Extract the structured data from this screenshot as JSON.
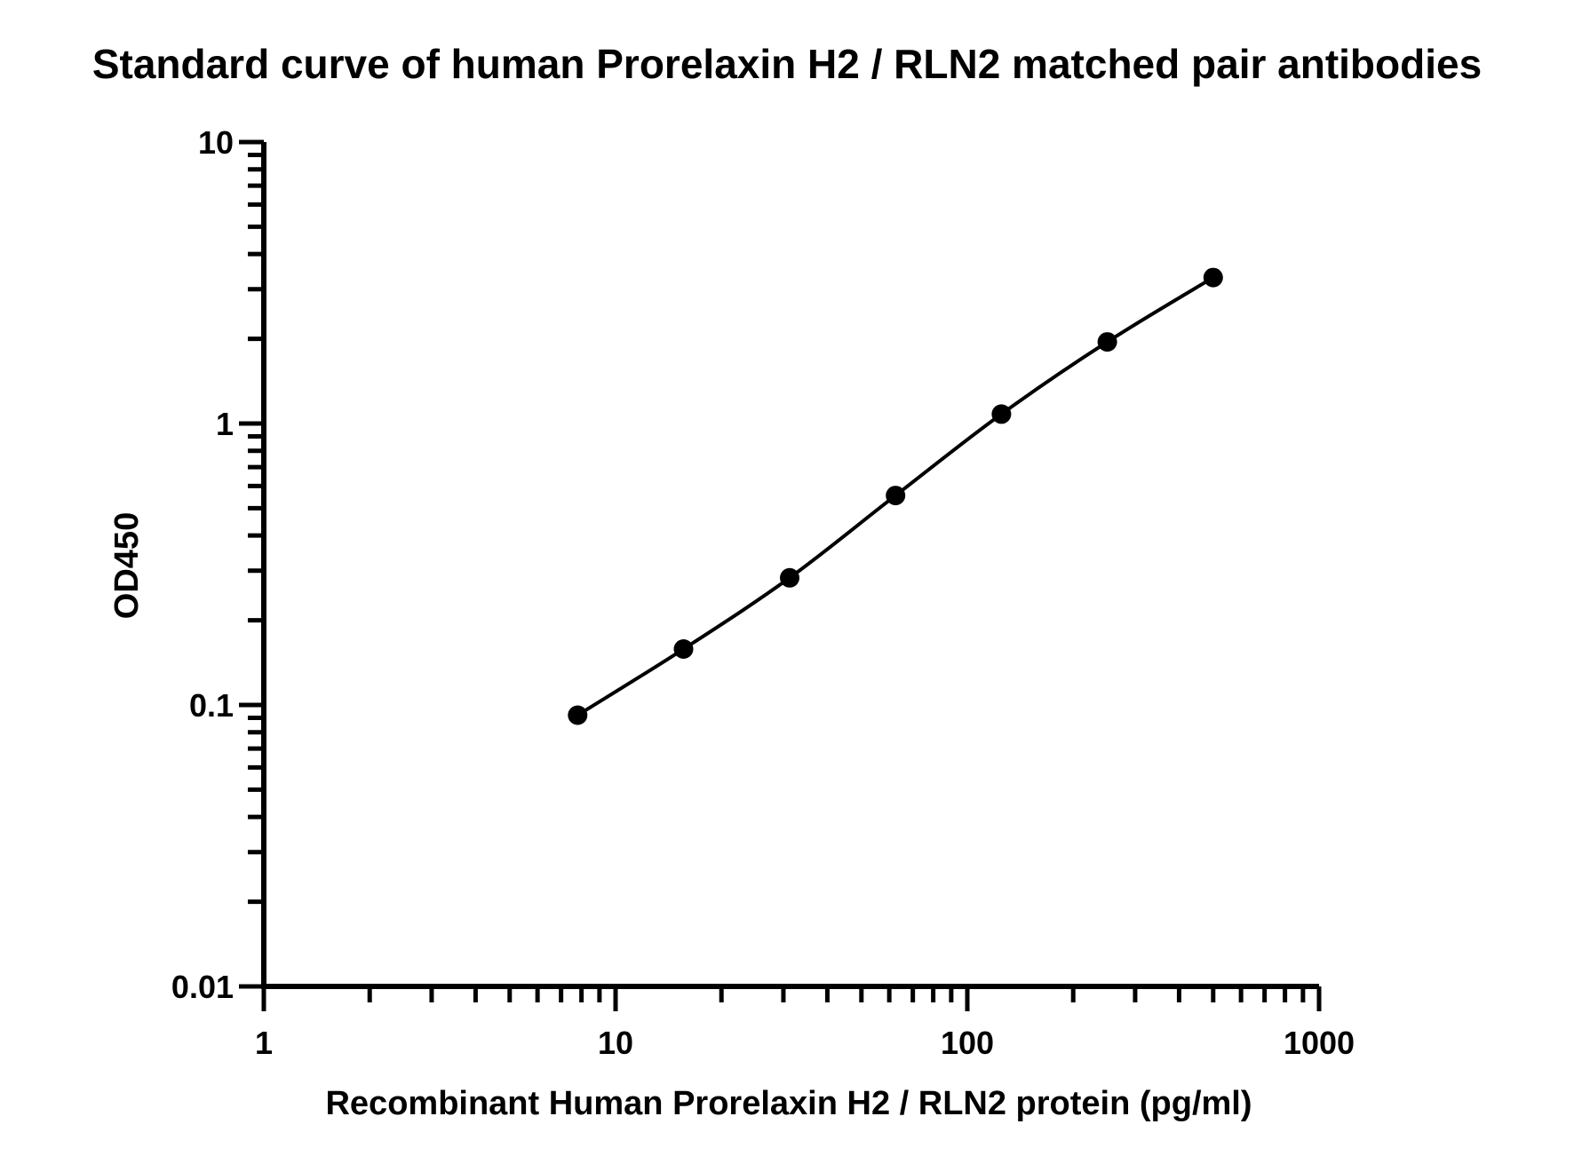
{
  "chart_data": {
    "type": "scatter",
    "title": "Standard curve of human Prorelaxin H2 / RLN2 matched pair antibodies",
    "xlabel": "Recombinant Human Prorelaxin H2 / RLN2 protein (pg/ml)",
    "ylabel": "OD450",
    "xscale": "log",
    "yscale": "log",
    "xlim": [
      1,
      1000
    ],
    "ylim": [
      0.01,
      10
    ],
    "xticks": [
      1,
      10,
      100,
      1000
    ],
    "xtick_labels": [
      "1",
      "10",
      "100",
      "1000"
    ],
    "yticks": [
      0.01,
      0.1,
      1,
      10
    ],
    "ytick_labels": [
      "0.01",
      "0.1",
      "1",
      "10"
    ],
    "grid": false,
    "fit_curve": true,
    "series": [
      {
        "x": [
          7.8,
          15.6,
          31.25,
          62.5,
          125,
          250,
          500
        ],
        "y": [
          0.092,
          0.158,
          0.283,
          0.555,
          1.08,
          1.95,
          3.3
        ]
      }
    ],
    "colors": {
      "marker": "#000000",
      "line": "#000000",
      "axis": "#000000"
    }
  }
}
